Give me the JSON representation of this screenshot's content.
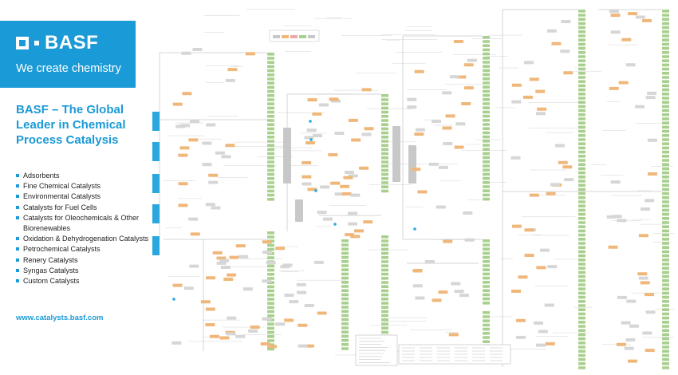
{
  "brand": {
    "logo_text": "BASF",
    "slogan": "We create chemistry",
    "color": "#1a9ad6"
  },
  "headline": "BASF – The Global Leader in Chemical Process Catalysis",
  "categories": [
    "Adsorbents",
    "Fine Chemical Catalysts",
    "Environmental Catalysts",
    "Catalysts for Fuel Cells",
    "Catalysts for Oleochemicals & Other Biorenewables",
    "Oxidation & Dehydrogenation Catalysts",
    "Petrochemical Catalysts",
    "Renery Catalysts",
    "Syngas Catalysts",
    "Custom Catalysts"
  ],
  "website": "www.catalysts.basf.com",
  "flowchart": {
    "node_colors": {
      "feedstock": "#29a8df",
      "process": "#c8c8c8",
      "catalyst": "#f0b77a",
      "product": "#a8d08d",
      "line": "#9a9a9a"
    }
  }
}
